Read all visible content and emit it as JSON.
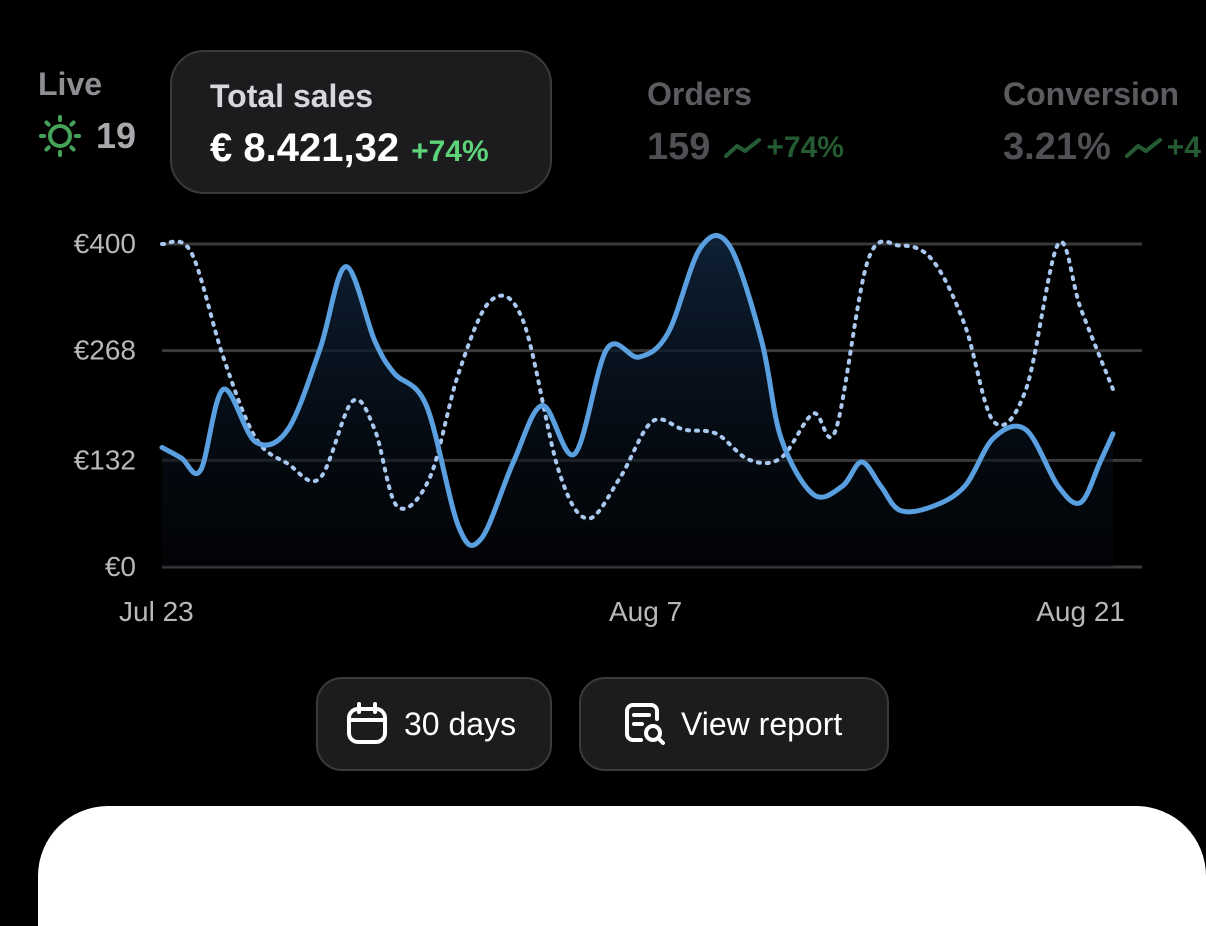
{
  "live": {
    "label": "Live",
    "count": "19",
    "icon": "sun-icon"
  },
  "metrics": {
    "total_sales": {
      "title": "Total sales",
      "value": "€ 8.421,32",
      "delta": "+74%",
      "selected": true
    },
    "orders": {
      "title": "Orders",
      "value": "159",
      "delta": "+74%",
      "icon": "trend-up-icon"
    },
    "conversion": {
      "title": "Conversion",
      "value": "3.21%",
      "delta": "+4",
      "icon": "trend-up-icon"
    }
  },
  "colors": {
    "background": "#000000",
    "accent_line": "#5aa0e0",
    "comparison_line": "#a9c8f0",
    "positive": "#5dd37a",
    "card": "#1c1c1e"
  },
  "chart_data": {
    "type": "line",
    "y_tick_labels": [
      "€400",
      "€268",
      "€132",
      "€0"
    ],
    "y_ticks": [
      400,
      268,
      132,
      0
    ],
    "ylim": [
      0,
      400
    ],
    "x_tick_labels": [
      "Jul 23",
      "Aug 7",
      "Aug 21"
    ],
    "x_ticks": [
      0,
      15,
      29
    ],
    "xlim": [
      0,
      29.5
    ],
    "grid": true,
    "series": [
      {
        "style": "solid",
        "x": [
          0,
          0.6,
          1.2,
          1.9,
          2.9,
          3.9,
          4.9,
          5.7,
          6.6,
          7.2,
          8.2,
          9.2,
          9.9,
          10.9,
          11.8,
          12.8,
          13.8,
          14.8,
          15.7,
          16.7,
          17.6,
          18.6,
          19.2,
          20.2,
          21.1,
          21.7,
          22.3,
          22.9,
          23.9,
          24.9,
          25.8,
          26.8,
          27.8,
          28.5,
          29.1,
          29.5
        ],
        "values": [
          148,
          135,
          120,
          220,
          155,
          170,
          270,
          372,
          280,
          240,
          200,
          50,
          35,
          130,
          200,
          140,
          270,
          260,
          290,
          395,
          398,
          280,
          160,
          90,
          100,
          130,
          100,
          70,
          75,
          100,
          160,
          170,
          100,
          80,
          130,
          165
        ]
      },
      {
        "style": "dotted",
        "x": [
          0,
          0.9,
          1.9,
          2.9,
          3.9,
          4.9,
          5.9,
          6.6,
          7.3,
          8.3,
          9.2,
          10.2,
          11.2,
          12.3,
          13.2,
          14.2,
          15.2,
          16.2,
          17.2,
          18.2,
          19.2,
          20.2,
          20.9,
          21.9,
          22.9,
          23.9,
          24.9,
          25.8,
          26.8,
          27.8,
          28.5,
          29.5
        ],
        "values": [
          400,
          390,
          260,
          160,
          128,
          110,
          205,
          170,
          75,
          110,
          240,
          330,
          305,
          120,
          60,
          110,
          180,
          170,
          165,
          133,
          135,
          190,
          170,
          380,
          398,
          380,
          300,
          180,
          220,
          400,
          320,
          220
        ]
      }
    ]
  },
  "actions": {
    "range": {
      "label": "30 days",
      "icon": "calendar-icon"
    },
    "report": {
      "label": "View report",
      "icon": "report-search-icon"
    }
  }
}
